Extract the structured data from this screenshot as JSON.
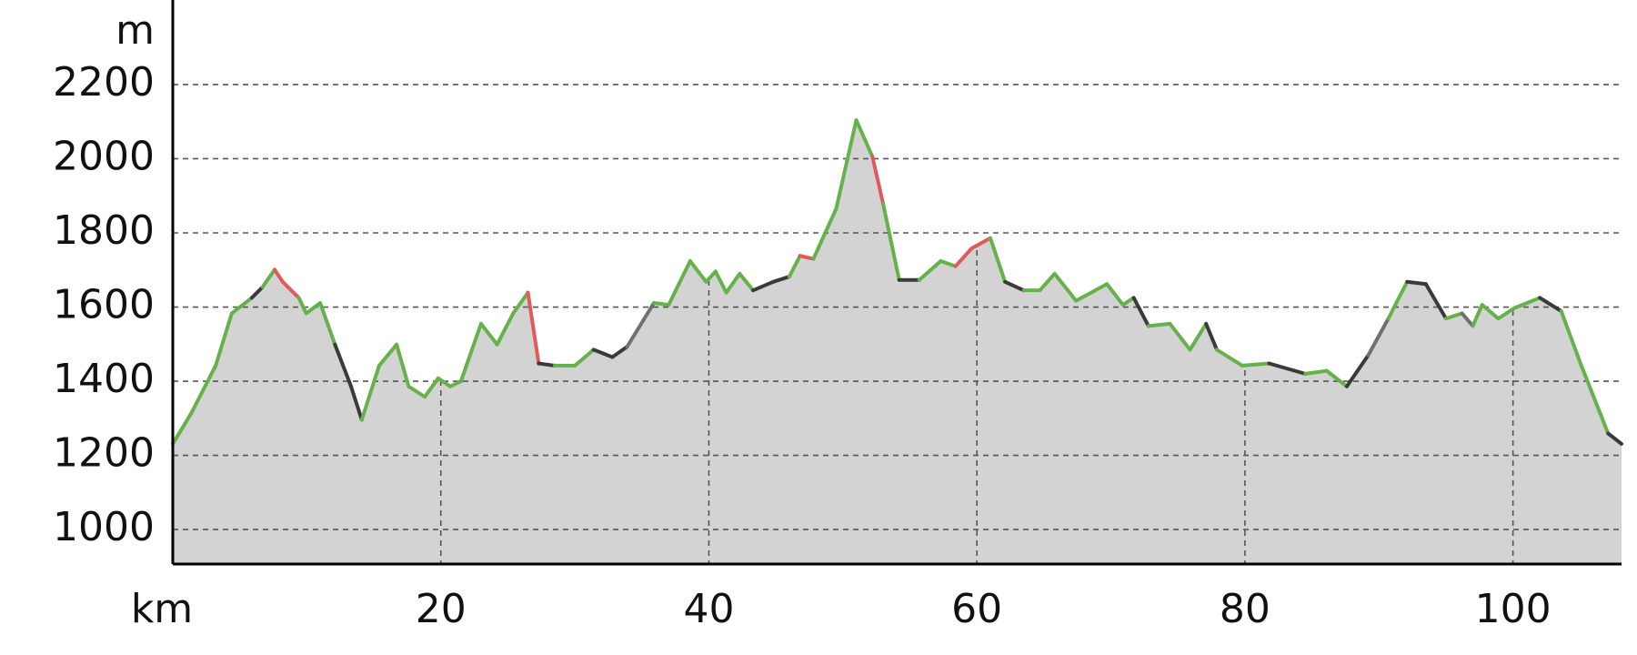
{
  "chart_data": {
    "type": "elevation-profile",
    "y_label": "m",
    "x_label": "km",
    "xlim": [
      0,
      108.1
    ],
    "ylim": [
      907,
      2428
    ],
    "xticks": [
      20,
      40,
      60,
      80,
      100
    ],
    "yticks": [
      1000,
      1200,
      1400,
      1600,
      1800,
      2000,
      2200
    ],
    "grid": true,
    "area_color": "#d3d3d3",
    "x": [
      0,
      1.4,
      3.2,
      4.4,
      5.9,
      6.7,
      7.6,
      8.2,
      9.4,
      9.96,
      11,
      12.1,
      13.3,
      14.1,
      15.4,
      16.7,
      17.6,
      18.8,
      19.8,
      20.7,
      21.5,
      23,
      24.2,
      25.4,
      26.5,
      27.3,
      28.5,
      30,
      31.4,
      32.8,
      33.9,
      35.9,
      37,
      38.6,
      39.8,
      40.5,
      41.3,
      42.3,
      43.3,
      44.8,
      46,
      46.8,
      47.8,
      49.5,
      51,
      52.2,
      53,
      54.2,
      55.7,
      57.3,
      58.4,
      59.6,
      61,
      62.1,
      63.5,
      64.7,
      65.8,
      67.4,
      69.7,
      70.9,
      71.7,
      72.8,
      74.4,
      75.9,
      77.1,
      77.9,
      79.8,
      81.8,
      84.5,
      86.1,
      87.6,
      89.2,
      90.7,
      92.1,
      93.5,
      95,
      96.2,
      97,
      97.7,
      98.9,
      100.1,
      102,
      103.6,
      105.1,
      107.1,
      108.1
    ],
    "values": [
      1231,
      1315,
      1442,
      1583,
      1625,
      1654,
      1701,
      1668,
      1625,
      1583,
      1611,
      1499,
      1386,
      1296,
      1442,
      1499,
      1386,
      1358,
      1408,
      1386,
      1400,
      1555,
      1499,
      1583,
      1639,
      1448,
      1442,
      1442,
      1485,
      1465,
      1493,
      1611,
      1606,
      1724,
      1668,
      1696,
      1639,
      1690,
      1645,
      1668,
      1682,
      1738,
      1730,
      1865,
      2104,
      2006,
      1879,
      1673,
      1673,
      1724,
      1710,
      1758,
      1786,
      1668,
      1645,
      1645,
      1690,
      1617,
      1662,
      1606,
      1625,
      1549,
      1555,
      1485,
      1555,
      1485,
      1442,
      1448,
      1420,
      1428,
      1386,
      1470,
      1569,
      1668,
      1662,
      1569,
      1583,
      1549,
      1606,
      1569,
      1597,
      1625,
      1589,
      1442,
      1259,
      1231
    ],
    "segment_colors": [
      "#66b24a",
      "#66b24a",
      "#66b24a",
      "#66b24a",
      "#3a3a3a",
      "#66b24a",
      "#e05a5a",
      "#e05a5a",
      "#66b24a",
      "#66b24a",
      "#66b24a",
      "#3a3a3a",
      "#3a3a3a",
      "#66b24a",
      "#66b24a",
      "#66b24a",
      "#66b24a",
      "#66b24a",
      "#66b24a",
      "#66b24a",
      "#66b24a",
      "#66b24a",
      "#66b24a",
      "#66b24a",
      "#e05a5a",
      "#3a3a3a",
      "#66b24a",
      "#66b24a",
      "#3a3a3a",
      "#3a3a3a",
      "#707070",
      "#66b24a",
      "#66b24a",
      "#66b24a",
      "#66b24a",
      "#66b24a",
      "#66b24a",
      "#66b24a",
      "#3a3a3a",
      "#3a3a3a",
      "#66b24a",
      "#e05a5a",
      "#66b24a",
      "#66b24a",
      "#66b24a",
      "#e05a5a",
      "#66b24a",
      "#3a3a3a",
      "#66b24a",
      "#66b24a",
      "#e05a5a",
      "#e05a5a",
      "#66b24a",
      "#3a3a3a",
      "#66b24a",
      "#66b24a",
      "#66b24a",
      "#66b24a",
      "#66b24a",
      "#66b24a",
      "#3a3a3a",
      "#66b24a",
      "#66b24a",
      "#66b24a",
      "#3a3a3a",
      "#66b24a",
      "#66b24a",
      "#3a3a3a",
      "#66b24a",
      "#66b24a",
      "#3a3a3a",
      "#707070",
      "#66b24a",
      "#3a3a3a",
      "#3a3a3a",
      "#66b24a",
      "#707070",
      "#66b24a",
      "#66b24a",
      "#66b24a",
      "#66b24a",
      "#3a3a3a",
      "#66b24a",
      "#66b24a",
      "#3a3a3a"
    ]
  }
}
